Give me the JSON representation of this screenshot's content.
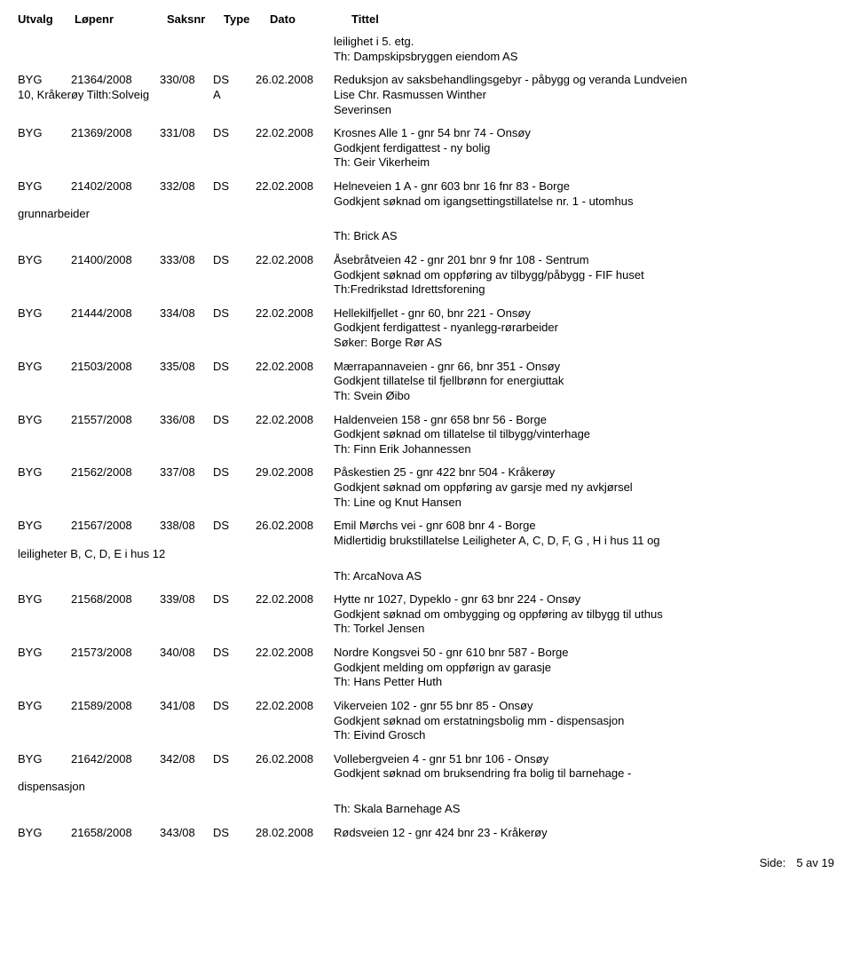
{
  "columns": {
    "utvalg": "Utvalg",
    "lopenr": "Løpenr",
    "saksnr": "Saksnr",
    "type": "Type",
    "dato": "Dato",
    "tittel": "Tittel"
  },
  "pre_continuation": {
    "l1": "leilighet i 5. etg.",
    "l2": "Th: Dampskipsbryggen eiendom AS"
  },
  "rows": [
    {
      "utvalg": "BYG",
      "lopenr": "21364/2008",
      "saksnr": "330/08",
      "type": "DS",
      "dato": "26.02.2008",
      "tittel": "Reduksjon av saksbehandlingsgebyr - påbygg og veranda Lundveien",
      "note_left": "10, Kråkerøy Tilth:Solveig",
      "note_indent_type": "A",
      "note_indent_tittel_l1": "Lise Chr. Rasmussen Winther",
      "note_indent_tittel_l2": "Severinsen"
    },
    {
      "utvalg": "BYG",
      "lopenr": "21369/2008",
      "saksnr": "331/08",
      "type": "DS",
      "dato": "22.02.2008",
      "tittel": "Krosnes Alle 1 - gnr 54 bnr 74 - Onsøy",
      "sub1": "Godkjent ferdigattest - ny bolig",
      "sub2": "Th: Geir Vikerheim"
    },
    {
      "utvalg": "BYG",
      "lopenr": "21402/2008",
      "saksnr": "332/08",
      "type": "DS",
      "dato": "22.02.2008",
      "tittel": "Helneveien 1 A - gnr 603 bnr 16 fnr 83 -  Borge",
      "sub1": "Godkjent søknad om igangsettingstillatelse nr. 1 - utomhus",
      "after_left": "grunnarbeider",
      "after_sub": "Th: Brick AS"
    },
    {
      "utvalg": "BYG",
      "lopenr": "21400/2008",
      "saksnr": "333/08",
      "type": "DS",
      "dato": "22.02.2008",
      "tittel": "Åsebråtveien 42 - gnr 201 bnr 9 fnr 108 - Sentrum",
      "sub1": "Godkjent søknad om oppføring av tilbygg/påbygg - FIF huset",
      "sub2": "Th:Fredrikstad Idrettsforening"
    },
    {
      "utvalg": "BYG",
      "lopenr": "21444/2008",
      "saksnr": "334/08",
      "type": "DS",
      "dato": "22.02.2008",
      "tittel": "Hellekilfjellet - gnr 60, bnr 221 - Onsøy",
      "sub1": "Godkjent ferdigattest - nyanlegg-rørarbeider",
      "sub2": "Søker: Borge Rør AS"
    },
    {
      "utvalg": "BYG",
      "lopenr": "21503/2008",
      "saksnr": "335/08",
      "type": "DS",
      "dato": "22.02.2008",
      "tittel": "Mærrapannaveien - gnr 66, bnr 351 - Onsøy",
      "sub1": "Godkjent tillatelse til fjellbrønn for energiuttak",
      "sub2": "Th: Svein Øibo"
    },
    {
      "utvalg": "BYG",
      "lopenr": "21557/2008",
      "saksnr": "336/08",
      "type": "DS",
      "dato": "22.02.2008",
      "tittel": "Haldenveien 158 - gnr 658 bnr 56 - Borge",
      "sub1": "Godkjent søknad om tillatelse til tilbygg/vinterhage",
      "sub2": "Th: Finn Erik Johannessen"
    },
    {
      "utvalg": "BYG",
      "lopenr": "21562/2008",
      "saksnr": "337/08",
      "type": "DS",
      "dato": "29.02.2008",
      "tittel": "Påskestien 25 - gnr 422 bnr 504 - Kråkerøy",
      "sub1": "Godkjent søknad om oppføring av garsje med ny avkjørsel",
      "sub2": "Th: Line og Knut Hansen"
    },
    {
      "utvalg": "BYG",
      "lopenr": "21567/2008",
      "saksnr": "338/08",
      "type": "DS",
      "dato": "26.02.2008",
      "tittel": "Emil Mørchs vei - gnr 608 bnr 4 - Borge",
      "sub1": "Midlertidig brukstillatelse Leiligheter A, C, D, F, G , H i hus 11 og",
      "after_left": "leiligheter B, C, D, E i hus 12",
      "after_sub": "Th: ArcaNova AS"
    },
    {
      "utvalg": "BYG",
      "lopenr": "21568/2008",
      "saksnr": "339/08",
      "type": "DS",
      "dato": "22.02.2008",
      "tittel": "Hytte nr 1027, Dypeklo -  gnr 63 bnr 224 - Onsøy",
      "sub1": "Godkjent søknad om ombygging og oppføring av tilbygg til uthus",
      "sub2": "Th: Torkel Jensen"
    },
    {
      "utvalg": "BYG",
      "lopenr": "21573/2008",
      "saksnr": "340/08",
      "type": "DS",
      "dato": "22.02.2008",
      "tittel": "Nordre Kongsvei 50 - gnr 610 bnr 587 - Borge",
      "sub1": "Godkjent melding om oppførign av garasje",
      "sub2": "Th: Hans Petter Huth"
    },
    {
      "utvalg": "BYG",
      "lopenr": "21589/2008",
      "saksnr": "341/08",
      "type": "DS",
      "dato": "22.02.2008",
      "tittel": "Vikerveien 102 - gnr 55 bnr 85 - Onsøy",
      "sub1": "Godkjent søknad om erstatningsbolig mm - dispensasjon",
      "sub2": "Th: Eivind Grosch"
    },
    {
      "utvalg": "BYG",
      "lopenr": "21642/2008",
      "saksnr": "342/08",
      "type": "DS",
      "dato": "26.02.2008",
      "tittel": "Vollebergveien 4 - gnr 51 bnr 106 - Onsøy",
      "sub1": "Godkjent søknad om bruksendring fra bolig til barnehage -",
      "after_left": "dispensasjon",
      "after_sub": "Th: Skala Barnehage AS"
    },
    {
      "utvalg": "BYG",
      "lopenr": "21658/2008",
      "saksnr": "343/08",
      "type": "DS",
      "dato": "28.02.2008",
      "tittel": "Rødsveien 12 - gnr 424 bnr 23 - Kråkerøy"
    }
  ],
  "footer": {
    "label": "Side:",
    "value": "5 av 19"
  }
}
